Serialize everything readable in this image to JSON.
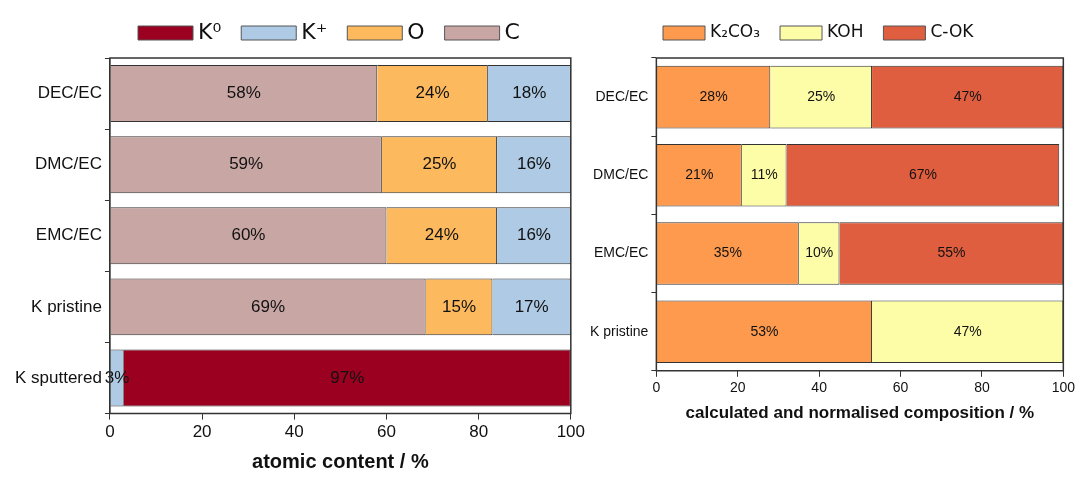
{
  "chart_data": [
    {
      "type": "bar",
      "orientation": "horizontal",
      "stacked": true,
      "xlabel": "atomic content / %",
      "categories": [
        "DEC/EC",
        "DMC/EC",
        "EMC/EC",
        "K pristine",
        "K sputtered"
      ],
      "xlim": [
        0,
        100
      ],
      "xticks": [
        0,
        20,
        40,
        60,
        80,
        100
      ],
      "legend": "top",
      "series": [
        {
          "name": "C",
          "color": "#c8a6a4",
          "values": [
            58,
            59,
            60,
            68.5,
            null
          ],
          "value_labels": [
            "58%",
            "59%",
            "60%",
            "69%",
            null
          ]
        },
        {
          "name": "O",
          "color": "#fdb95e",
          "values": [
            24,
            25,
            24,
            14.5,
            null
          ],
          "value_labels": [
            "24%",
            "25%",
            "24%",
            "15%",
            null
          ]
        },
        {
          "name": "K⁺",
          "color": "#aecae4",
          "values": [
            18,
            16,
            16,
            17,
            3
          ],
          "value_labels": [
            "18%",
            "16%",
            "16%",
            "17%",
            "3%"
          ]
        },
        {
          "name": "K⁰",
          "color": "#9b0020",
          "values": [
            null,
            null,
            null,
            null,
            97
          ],
          "value_labels": [
            null,
            null,
            null,
            null,
            "97%"
          ]
        }
      ]
    },
    {
      "type": "bar",
      "orientation": "horizontal",
      "stacked": true,
      "xlabel": "calculated and normalised composition / %",
      "categories": [
        "DEC/EC",
        "DMC/EC",
        "EMC/EC",
        "K pristine"
      ],
      "xlim": [
        0,
        100
      ],
      "xticks": [
        0,
        20,
        40,
        60,
        80,
        100
      ],
      "legend": "top",
      "series": [
        {
          "name": "K₂CO₃",
          "color": "#fd9a4e",
          "values": [
            28,
            21,
            35,
            53
          ],
          "value_labels": [
            "28%",
            "21%",
            "35%",
            "53%"
          ]
        },
        {
          "name": "KOH",
          "color": "#fdfda8",
          "values": [
            25,
            11,
            10,
            47
          ],
          "value_labels": [
            "25%",
            "11%",
            "10%",
            "47%"
          ]
        },
        {
          "name": "C-OK",
          "color": "#e05e40",
          "values": [
            47,
            67,
            55,
            null
          ],
          "value_labels": [
            "47%",
            "67%",
            "55%",
            null
          ]
        }
      ]
    }
  ]
}
